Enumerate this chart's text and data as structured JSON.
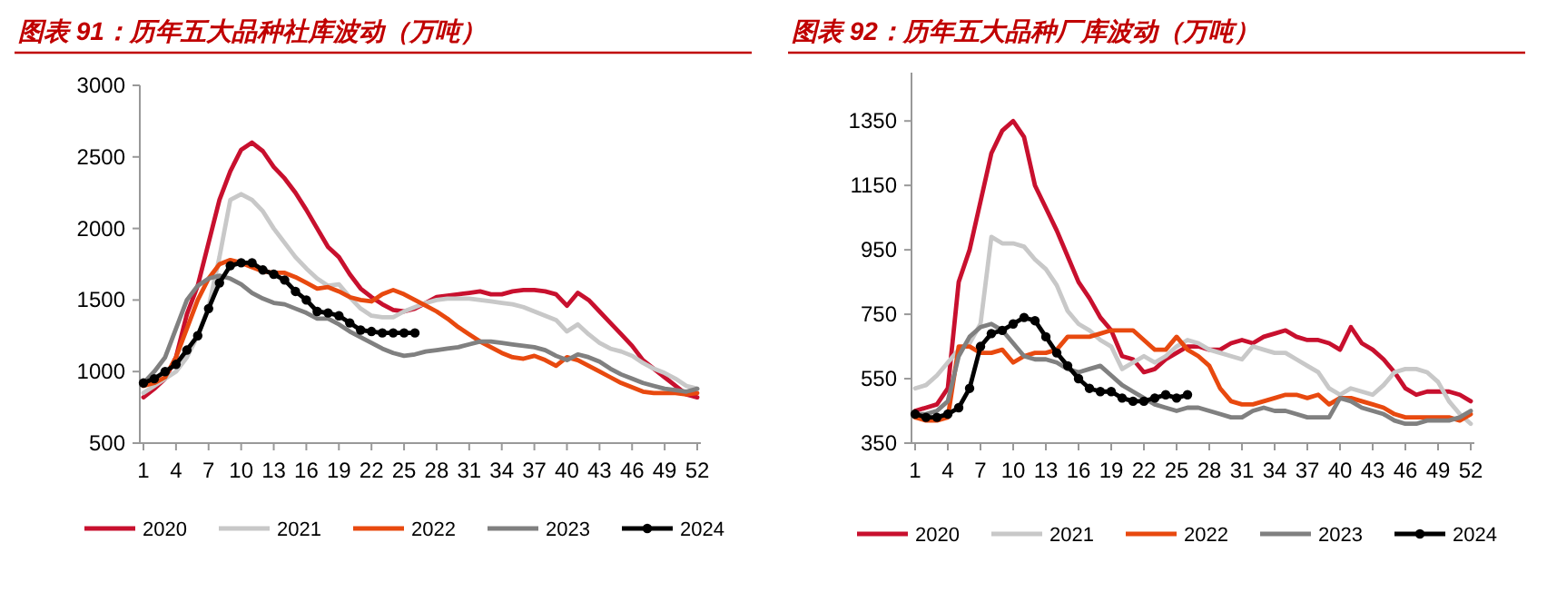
{
  "chart_data": [
    {
      "type": "line",
      "title": "图表 91：历年五大品种社库波动（万吨）",
      "legend": "bottom",
      "x": [
        1,
        2,
        3,
        4,
        5,
        6,
        7,
        8,
        9,
        10,
        11,
        12,
        13,
        14,
        15,
        16,
        17,
        18,
        19,
        20,
        21,
        22,
        23,
        24,
        25,
        26,
        27,
        28,
        29,
        30,
        31,
        32,
        33,
        34,
        35,
        36,
        37,
        38,
        39,
        40,
        41,
        42,
        43,
        44,
        45,
        46,
        47,
        48,
        49,
        50,
        51,
        52
      ],
      "xlim": [
        1,
        52
      ],
      "xticks": [
        1,
        4,
        7,
        10,
        13,
        16,
        19,
        22,
        25,
        28,
        31,
        34,
        37,
        40,
        43,
        46,
        49,
        52
      ],
      "ylim": [
        500,
        3000
      ],
      "yticks": [
        500,
        1000,
        1500,
        2000,
        2500,
        3000
      ],
      "series": [
        {
          "name": "2020",
          "color": "#c8102e",
          "values": [
            820,
            880,
            950,
            1100,
            1400,
            1600,
            1900,
            2200,
            2400,
            2550,
            2600,
            2540,
            2430,
            2350,
            2250,
            2130,
            2000,
            1870,
            1800,
            1680,
            1580,
            1520,
            1470,
            1430,
            1420,
            1440,
            1480,
            1520,
            1530,
            1540,
            1550,
            1560,
            1540,
            1540,
            1560,
            1570,
            1570,
            1560,
            1540,
            1460,
            1550,
            1500,
            1420,
            1340,
            1260,
            1180,
            1080,
            1020,
            960,
            900,
            840,
            820
          ]
        },
        {
          "name": "2021",
          "color": "#c8c8c8",
          "values": [
            850,
            900,
            950,
            1000,
            1100,
            1250,
            1450,
            1800,
            2200,
            2240,
            2200,
            2120,
            2000,
            1900,
            1800,
            1720,
            1650,
            1600,
            1610,
            1520,
            1440,
            1390,
            1380,
            1380,
            1420,
            1450,
            1480,
            1500,
            1510,
            1510,
            1510,
            1500,
            1490,
            1480,
            1470,
            1450,
            1420,
            1390,
            1360,
            1280,
            1330,
            1260,
            1200,
            1160,
            1140,
            1110,
            1060,
            1020,
            990,
            950,
            900,
            880
          ]
        },
        {
          "name": "2022",
          "color": "#e8490f",
          "values": [
            900,
            920,
            960,
            1100,
            1300,
            1500,
            1650,
            1750,
            1780,
            1760,
            1730,
            1700,
            1690,
            1690,
            1660,
            1620,
            1580,
            1590,
            1560,
            1520,
            1500,
            1490,
            1540,
            1570,
            1540,
            1500,
            1460,
            1420,
            1370,
            1310,
            1260,
            1210,
            1170,
            1130,
            1100,
            1090,
            1110,
            1080,
            1040,
            1100,
            1080,
            1040,
            1000,
            960,
            920,
            890,
            860,
            850,
            850,
            850,
            840,
            850
          ]
        },
        {
          "name": "2023",
          "color": "#808080",
          "values": [
            920,
            1000,
            1100,
            1300,
            1500,
            1600,
            1650,
            1670,
            1650,
            1610,
            1550,
            1510,
            1480,
            1470,
            1440,
            1410,
            1370,
            1370,
            1330,
            1280,
            1240,
            1200,
            1160,
            1130,
            1110,
            1120,
            1140,
            1150,
            1160,
            1170,
            1190,
            1210,
            1210,
            1200,
            1190,
            1180,
            1170,
            1150,
            1110,
            1080,
            1120,
            1100,
            1070,
            1020,
            980,
            950,
            920,
            900,
            880,
            870,
            860,
            880
          ]
        },
        {
          "name": "2024",
          "color": "#000000",
          "marker": "circle",
          "x": [
            1,
            2,
            3,
            4,
            5,
            6,
            7,
            8,
            9,
            10,
            11,
            12,
            13,
            14,
            15,
            16,
            17,
            18,
            19,
            20,
            21,
            22,
            23,
            24,
            25,
            26
          ],
          "values": [
            920,
            950,
            1000,
            1050,
            1150,
            1250,
            1440,
            1620,
            1740,
            1760,
            1760,
            1710,
            1680,
            1640,
            1560,
            1500,
            1420,
            1410,
            1390,
            1340,
            1290,
            1280,
            1270,
            1270,
            1270,
            1270
          ]
        }
      ]
    },
    {
      "type": "line",
      "title": "图表 92：历年五大品种厂库波动（万吨）",
      "legend": "bottom",
      "x": [
        1,
        2,
        3,
        4,
        5,
        6,
        7,
        8,
        9,
        10,
        11,
        12,
        13,
        14,
        15,
        16,
        17,
        18,
        19,
        20,
        21,
        22,
        23,
        24,
        25,
        26,
        27,
        28,
        29,
        30,
        31,
        32,
        33,
        34,
        35,
        36,
        37,
        38,
        39,
        40,
        41,
        42,
        43,
        44,
        45,
        46,
        47,
        48,
        49,
        50,
        51,
        52
      ],
      "xlim": [
        1,
        52
      ],
      "xticks": [
        1,
        4,
        7,
        10,
        13,
        16,
        19,
        22,
        25,
        28,
        31,
        34,
        37,
        40,
        43,
        46,
        49,
        52
      ],
      "ylim": [
        350,
        1500
      ],
      "yticks": [
        350,
        550,
        750,
        950,
        1150,
        1350
      ],
      "series": [
        {
          "name": "2020",
          "color": "#c8102e",
          "values": [
            450,
            460,
            470,
            520,
            850,
            950,
            1100,
            1250,
            1320,
            1350,
            1300,
            1150,
            1080,
            1010,
            930,
            850,
            800,
            740,
            700,
            620,
            610,
            570,
            580,
            610,
            630,
            650,
            650,
            640,
            640,
            660,
            670,
            660,
            680,
            690,
            700,
            680,
            670,
            670,
            660,
            640,
            710,
            660,
            640,
            610,
            570,
            520,
            500,
            510,
            510,
            510,
            500,
            480
          ]
        },
        {
          "name": "2021",
          "color": "#c8c8c8",
          "values": [
            520,
            530,
            560,
            600,
            640,
            660,
            720,
            990,
            970,
            970,
            960,
            920,
            890,
            840,
            760,
            720,
            700,
            670,
            650,
            580,
            600,
            620,
            600,
            620,
            650,
            670,
            660,
            640,
            630,
            620,
            610,
            650,
            640,
            630,
            630,
            610,
            590,
            570,
            520,
            500,
            520,
            510,
            500,
            530,
            570,
            580,
            580,
            570,
            540,
            480,
            440,
            410
          ]
        },
        {
          "name": "2022",
          "color": "#e8490f",
          "values": [
            430,
            420,
            420,
            430,
            650,
            650,
            630,
            630,
            640,
            600,
            620,
            630,
            630,
            640,
            680,
            680,
            680,
            690,
            700,
            700,
            700,
            670,
            640,
            640,
            680,
            640,
            620,
            590,
            520,
            480,
            470,
            470,
            480,
            490,
            500,
            500,
            490,
            500,
            470,
            490,
            490,
            480,
            470,
            460,
            440,
            430,
            430,
            430,
            430,
            430,
            420,
            440
          ]
        },
        {
          "name": "2023",
          "color": "#808080",
          "values": [
            440,
            440,
            450,
            480,
            620,
            680,
            710,
            720,
            700,
            660,
            620,
            610,
            610,
            600,
            580,
            570,
            580,
            590,
            560,
            530,
            510,
            490,
            470,
            460,
            450,
            460,
            460,
            450,
            440,
            430,
            430,
            450,
            460,
            450,
            450,
            440,
            430,
            430,
            430,
            490,
            480,
            460,
            450,
            440,
            420,
            410,
            410,
            420,
            420,
            420,
            430,
            450
          ]
        },
        {
          "name": "2024",
          "color": "#000000",
          "marker": "circle",
          "x": [
            1,
            2,
            3,
            4,
            5,
            6,
            7,
            8,
            9,
            10,
            11,
            12,
            13,
            14,
            15,
            16,
            17,
            18,
            19,
            20,
            21,
            22,
            23,
            24,
            25,
            26
          ],
          "values": [
            440,
            430,
            430,
            440,
            460,
            520,
            650,
            690,
            700,
            720,
            740,
            730,
            680,
            630,
            590,
            550,
            520,
            510,
            510,
            490,
            480,
            480,
            490,
            500,
            490,
            500
          ]
        }
      ]
    }
  ]
}
